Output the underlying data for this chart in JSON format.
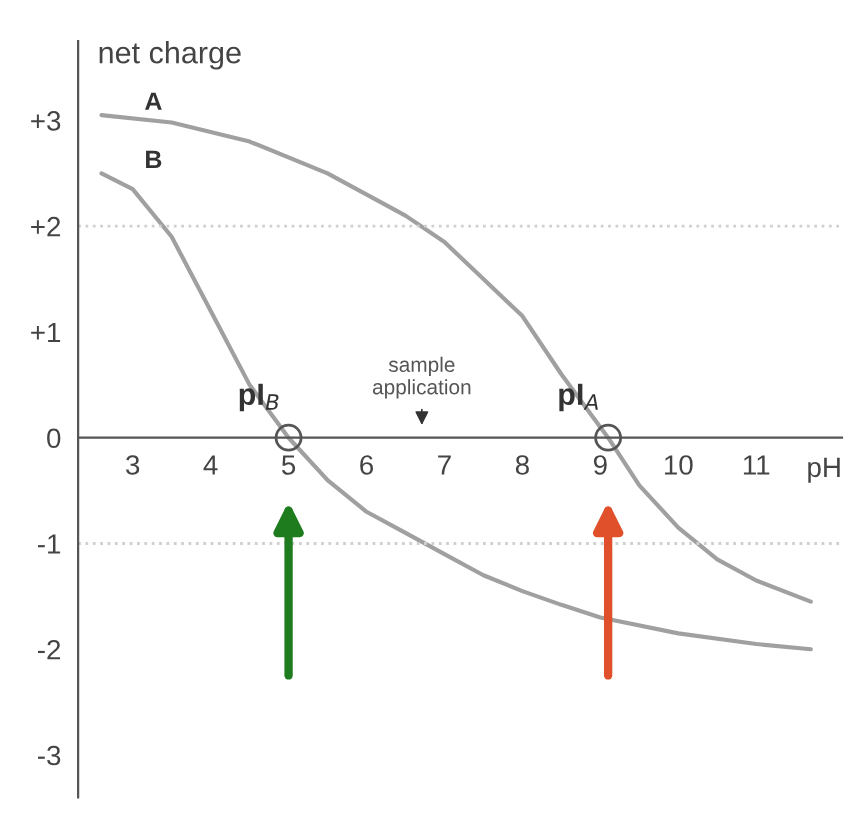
{
  "chart_data": {
    "type": "line",
    "xlabel": "pH",
    "ylabel": "net charge",
    "xlim": [
      2.3,
      12.1
    ],
    "ylim": [
      -3.4,
      3.75
    ],
    "xticks": [
      3,
      4,
      5,
      6,
      7,
      8,
      9,
      10,
      11
    ],
    "yticks": [
      {
        "value": 3,
        "label": "+3"
      },
      {
        "value": 2,
        "label": "+2"
      },
      {
        "value": 1,
        "label": "+1"
      },
      0,
      -1,
      -2,
      -3
    ],
    "series": [
      {
        "name": "A",
        "color": "#a0a0a0",
        "x": [
          2.6,
          3.5,
          4.5,
          5.5,
          6.5,
          7,
          7.5,
          8,
          8.5,
          9.1,
          9.5,
          10,
          10.5,
          11,
          11.7
        ],
        "values": [
          3.05,
          2.98,
          2.8,
          2.5,
          2.1,
          1.85,
          1.5,
          1.15,
          0.6,
          0,
          -0.45,
          -0.85,
          -1.15,
          -1.35,
          -1.55
        ]
      },
      {
        "name": "B",
        "color": "#a0a0a0",
        "x": [
          2.6,
          3,
          3.5,
          4,
          4.5,
          5,
          5.5,
          6,
          6.5,
          7,
          7.5,
          8,
          8.5,
          9,
          10,
          11,
          11.7
        ],
        "values": [
          2.5,
          2.35,
          1.9,
          1.2,
          0.5,
          0,
          -0.4,
          -0.7,
          -0.9,
          -1.1,
          -1.3,
          -1.45,
          -1.58,
          -1.7,
          -1.85,
          -1.95,
          -2.0
        ]
      }
    ],
    "ref_lines": [
      {
        "axis": "y",
        "value": 2,
        "color": "#d0d0d0",
        "line_style": "dotted"
      },
      {
        "axis": "y",
        "value": -1,
        "color": "#d0d0d0",
        "line_style": "dotted"
      }
    ],
    "annotations": [
      {
        "text": "pI$_{B}$",
        "x": 5,
        "y": 0
      },
      {
        "text": "pI$_{A}$",
        "x": 9.1,
        "y": 0
      },
      "sample\napplication"
    ],
    "grid": false,
    "legend": false,
    "marker": "none",
    "line_style": "solid"
  }
}
